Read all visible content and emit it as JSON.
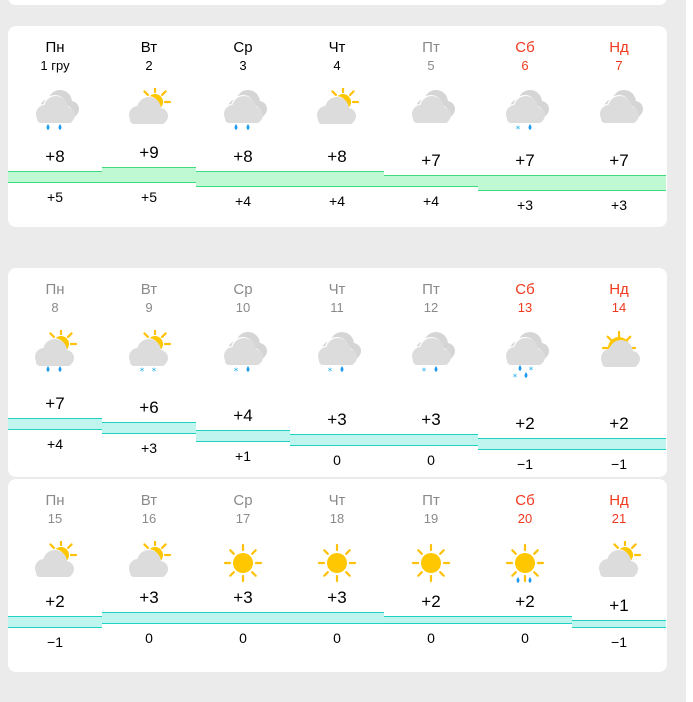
{
  "colors": {
    "weekday": "#000000",
    "past": "#8a8a8a",
    "weekend": "#f0391e",
    "band_green_fill": "#bff9d4",
    "band_green_line": "#3edc7c",
    "band_cyan_fill": "#bff5ee",
    "band_cyan_line": "#1fd3c3"
  },
  "weeks": [
    {
      "band": "green",
      "days": [
        {
          "weekday": "Пн",
          "date": "1 гру",
          "status": "current",
          "icon": "cloud",
          "precip": [
            "rain",
            "rain"
          ],
          "high": "+8",
          "low": "+5",
          "hi_t": 8,
          "lo_t": 5
        },
        {
          "weekday": "Вт",
          "date": "2",
          "status": "current",
          "icon": "sun-cloud",
          "precip": [],
          "high": "+9",
          "low": "+5",
          "hi_t": 9,
          "lo_t": 5
        },
        {
          "weekday": "Ср",
          "date": "3",
          "status": "current",
          "icon": "cloud",
          "precip": [
            "rain",
            "rain"
          ],
          "high": "+8",
          "low": "+4",
          "hi_t": 8,
          "lo_t": 4
        },
        {
          "weekday": "Чт",
          "date": "4",
          "status": "current",
          "icon": "sun-cloud",
          "precip": [],
          "high": "+8",
          "low": "+4",
          "hi_t": 8,
          "lo_t": 4
        },
        {
          "weekday": "Пт",
          "date": "5",
          "status": "past",
          "icon": "cloud",
          "precip": [],
          "high": "+7",
          "low": "+4",
          "hi_t": 7,
          "lo_t": 4
        },
        {
          "weekday": "Сб",
          "date": "6",
          "status": "weekend",
          "icon": "cloud",
          "precip": [
            "snow",
            "rain"
          ],
          "high": "+7",
          "low": "+3",
          "hi_t": 7,
          "lo_t": 3
        },
        {
          "weekday": "Нд",
          "date": "7",
          "status": "weekend",
          "icon": "cloud",
          "precip": [],
          "high": "+7",
          "low": "+3",
          "hi_t": 7,
          "lo_t": 3
        }
      ]
    },
    {
      "band": "cyan",
      "days": [
        {
          "weekday": "Пн",
          "date": "8",
          "status": "past",
          "icon": "sun-cloud",
          "precip": [
            "rain",
            "rain"
          ],
          "high": "+7",
          "low": "+4",
          "hi_t": 7,
          "lo_t": 4
        },
        {
          "weekday": "Вт",
          "date": "9",
          "status": "past",
          "icon": "sun-cloud",
          "precip": [
            "snow",
            "snow"
          ],
          "high": "+6",
          "low": "+3",
          "hi_t": 6,
          "lo_t": 3
        },
        {
          "weekday": "Ср",
          "date": "10",
          "status": "past",
          "icon": "cloud",
          "precip": [
            "snow",
            "rain"
          ],
          "high": "+4",
          "low": "+1",
          "hi_t": 4,
          "lo_t": 1
        },
        {
          "weekday": "Чт",
          "date": "11",
          "status": "past",
          "icon": "cloud",
          "precip": [
            "snow",
            "rain"
          ],
          "high": "+3",
          "low": "0",
          "hi_t": 3,
          "lo_t": 0
        },
        {
          "weekday": "Пт",
          "date": "12",
          "status": "past",
          "icon": "cloud",
          "precip": [
            "snow",
            "rain"
          ],
          "high": "+3",
          "low": "0",
          "hi_t": 3,
          "lo_t": 0
        },
        {
          "weekday": "Сб",
          "date": "13",
          "status": "weekend",
          "icon": "cloud",
          "precip": [
            "rain",
            "snow",
            "snow",
            "rain"
          ],
          "high": "+2",
          "low": "−1",
          "hi_t": 2,
          "lo_t": -1
        },
        {
          "weekday": "Нд",
          "date": "14",
          "status": "weekend",
          "icon": "sun-over-cloud",
          "precip": [],
          "high": "+2",
          "low": "−1",
          "hi_t": 2,
          "lo_t": -1
        }
      ]
    },
    {
      "band": "cyan",
      "days": [
        {
          "weekday": "Пн",
          "date": "15",
          "status": "past",
          "icon": "sun-cloud",
          "precip": [],
          "high": "+2",
          "low": "−1",
          "hi_t": 2,
          "lo_t": -1
        },
        {
          "weekday": "Вт",
          "date": "16",
          "status": "past",
          "icon": "sun-cloud",
          "precip": [],
          "high": "+3",
          "low": "0",
          "hi_t": 3,
          "lo_t": 0
        },
        {
          "weekday": "Ср",
          "date": "17",
          "status": "past",
          "icon": "sun",
          "precip": [],
          "high": "+3",
          "low": "0",
          "hi_t": 3,
          "lo_t": 0
        },
        {
          "weekday": "Чт",
          "date": "18",
          "status": "past",
          "icon": "sun",
          "precip": [],
          "high": "+3",
          "low": "0",
          "hi_t": 3,
          "lo_t": 0
        },
        {
          "weekday": "Пт",
          "date": "19",
          "status": "past",
          "icon": "sun",
          "precip": [],
          "high": "+2",
          "low": "0",
          "hi_t": 2,
          "lo_t": 0
        },
        {
          "weekday": "Сб",
          "date": "20",
          "status": "weekend",
          "icon": "sun",
          "precip": [
            "rain",
            "rain"
          ],
          "high": "+2",
          "low": "0",
          "hi_t": 2,
          "lo_t": 0
        },
        {
          "weekday": "Нд",
          "date": "21",
          "status": "weekend",
          "icon": "sun-cloud",
          "precip": [],
          "high": "+1",
          "low": "−1",
          "hi_t": 1,
          "lo_t": -1
        }
      ]
    }
  ]
}
